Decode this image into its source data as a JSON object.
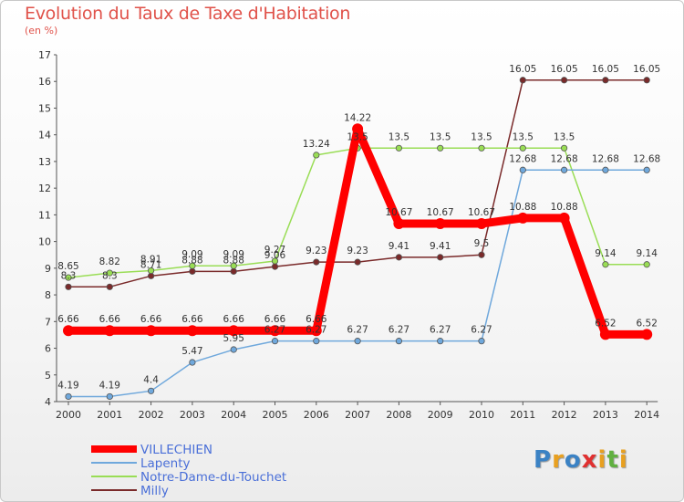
{
  "chart_data": {
    "type": "line",
    "title": "Evolution du Taux de Taxe d'Habitation",
    "subtitle": "(en %)",
    "x": [
      "2000",
      "2001",
      "2002",
      "2003",
      "2004",
      "2005",
      "2006",
      "2007",
      "2008",
      "2009",
      "2010",
      "2011",
      "2012",
      "2013",
      "2014"
    ],
    "ylim": [
      4,
      17
    ],
    "yticks": [
      4,
      5,
      6,
      7,
      8,
      9,
      10,
      11,
      12,
      13,
      14,
      15,
      16,
      17
    ],
    "grid": false,
    "legend_position": "bottom-left",
    "series": [
      {
        "name": "VILLECHIEN",
        "color": "#ff0000",
        "values": [
          6.66,
          6.66,
          6.66,
          6.66,
          6.66,
          6.66,
          6.66,
          14.22,
          10.67,
          10.67,
          10.67,
          10.88,
          10.88,
          6.52,
          6.52
        ],
        "labels": [
          "6.66",
          "6.66",
          "6.66",
          "6.66",
          "6.66",
          "6.66",
          "6.66",
          "14.22",
          "10.67",
          "10.67",
          "10.67",
          "10.88",
          "10.88",
          "6.52",
          "6.52"
        ]
      },
      {
        "name": "Lapenty",
        "color": "#6fa8dc",
        "values": [
          4.19,
          4.19,
          4.4,
          5.47,
          5.95,
          6.27,
          6.27,
          6.27,
          6.27,
          6.27,
          6.27,
          12.68,
          12.68,
          12.68,
          12.68
        ],
        "labels": [
          "4.19",
          "4.19",
          "4.4",
          "5.47",
          "5.95",
          "6.27",
          "6.27",
          "6.27",
          "6.27",
          "6.27",
          "6.27",
          "12.68",
          "12.68",
          "12.68",
          "12.68"
        ]
      },
      {
        "name": "Notre-Dame-du-Touchet",
        "color": "#99dd55",
        "values": [
          8.65,
          8.82,
          8.91,
          9.09,
          9.09,
          9.27,
          13.24,
          13.5,
          13.5,
          13.5,
          13.5,
          13.5,
          13.5,
          9.14,
          9.14
        ],
        "labels": [
          "8.65",
          "8.82",
          "8.91",
          "9.09",
          "9.09",
          "9.27",
          "13.24",
          "13.5",
          "13.5",
          "13.5",
          "13.5",
          "13.5",
          "13.5",
          "9.14",
          "9.14"
        ]
      },
      {
        "name": "Milly",
        "color": "#7a2a2a",
        "values": [
          8.3,
          8.3,
          8.71,
          8.88,
          8.88,
          9.06,
          9.23,
          9.23,
          9.41,
          9.41,
          9.5,
          16.05,
          16.05,
          16.05,
          16.05
        ],
        "labels": [
          "8.3",
          "8.3",
          "8.71",
          "8.88",
          "8.88",
          "9.06",
          "9.23",
          "9.23",
          "9.41",
          "9.41",
          "9.5",
          "16.05",
          "16.05",
          "16.05",
          "16.05"
        ]
      }
    ]
  },
  "logo": {
    "letters": [
      "P",
      "r",
      "o",
      "x",
      "i",
      "t",
      "i"
    ],
    "colors": [
      "#3b82c4",
      "#e8a020",
      "#3b82c4",
      "#e03030",
      "#e8a020",
      "#60b040",
      "#e8a020"
    ]
  }
}
